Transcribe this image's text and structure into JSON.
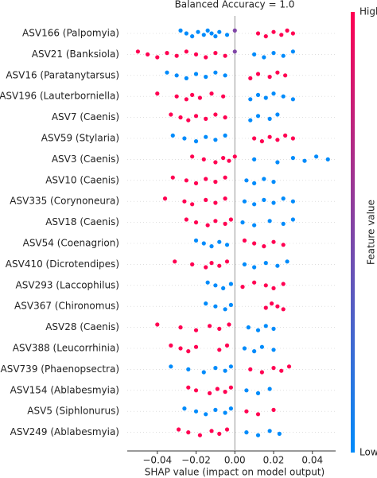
{
  "chart_data": {
    "type": "beeswarm",
    "title": "Balanced Accuracy = 1.0",
    "xlabel": "SHAP value (impact on model output)",
    "xlim": [
      -0.0555,
      0.052
    ],
    "xticks": [
      {
        "value": -0.04,
        "label": "−0.04"
      },
      {
        "value": -0.02,
        "label": "−0.02"
      },
      {
        "value": 0,
        "label": "0.00"
      },
      0.02,
      0.04
    ],
    "colorbar": {
      "label": "Feature value",
      "high": "High",
      "low": "Low",
      "colors": [
        "#008bfb",
        "#ff0052"
      ]
    },
    "series": [
      {
        "name": "ASV166 (Palpomyia)",
        "shap": [
          -0.028,
          -0.025,
          -0.022,
          -0.019,
          -0.016,
          -0.014,
          -0.012,
          -0.01,
          -0.008,
          -0.004,
          0,
          0.012,
          0.016,
          0.02,
          0.024,
          0.027,
          0.03
        ],
        "feature_value": [
          0,
          0,
          0,
          0,
          0,
          0,
          0,
          0,
          0,
          0,
          0.5,
          1,
          1,
          1,
          1,
          1,
          1
        ]
      },
      {
        "name": "ASV21 (Banksiola)",
        "shap": [
          -0.05,
          -0.045,
          -0.04,
          -0.035,
          -0.03,
          -0.025,
          -0.02,
          -0.015,
          -0.01,
          -0.005,
          0,
          0.01,
          0.015,
          0.02,
          0.025,
          0.03
        ],
        "feature_value": [
          1,
          1,
          1,
          1,
          1,
          1,
          1,
          1,
          1,
          1,
          0.5,
          0,
          0,
          0,
          0,
          0
        ]
      },
      {
        "name": "ASV16 (Paratanytarsus)",
        "shap": [
          -0.035,
          -0.03,
          -0.025,
          -0.02,
          -0.015,
          -0.01,
          -0.005,
          0.008,
          0.012,
          0.018,
          0.022,
          0.026
        ],
        "feature_value": [
          0,
          0,
          0,
          0,
          0,
          0,
          0,
          1,
          1,
          1,
          1,
          1
        ]
      },
      {
        "name": "ASV196 (Lauterborniella)",
        "shap": [
          -0.04,
          -0.03,
          -0.025,
          -0.022,
          -0.018,
          -0.012,
          -0.006,
          0.008,
          0.012,
          0.016,
          0.02,
          0.025,
          0.03
        ],
        "feature_value": [
          1,
          1,
          1,
          1,
          1,
          1,
          1,
          0,
          0,
          0,
          0,
          0,
          0
        ]
      },
      {
        "name": "ASV7 (Caenis)",
        "shap": [
          -0.033,
          -0.028,
          -0.024,
          -0.02,
          -0.015,
          -0.01,
          -0.005,
          0.008,
          0.012,
          0.018,
          0.022
        ],
        "feature_value": [
          1,
          1,
          1,
          1,
          1,
          1,
          1,
          0,
          0,
          0,
          0
        ]
      },
      {
        "name": "ASV59 (Stylaria)",
        "shap": [
          -0.032,
          -0.026,
          -0.02,
          -0.015,
          -0.01,
          -0.005,
          0.01,
          0.014,
          0.018,
          0.022,
          0.026,
          0.03
        ],
        "feature_value": [
          0,
          0,
          0,
          0,
          0,
          0,
          1,
          1,
          1,
          1,
          1,
          1
        ]
      },
      {
        "name": "ASV3 (Caenis)",
        "shap": [
          -0.022,
          -0.016,
          -0.01,
          -0.006,
          -0.003,
          0,
          0.01,
          0.022,
          0.03,
          0.036,
          0.042,
          0.048
        ],
        "feature_value": [
          1,
          1,
          1,
          1,
          1,
          1,
          0,
          0,
          0,
          0,
          0,
          0
        ]
      },
      {
        "name": "ASV10 (Caenis)",
        "shap": [
          -0.032,
          -0.025,
          -0.02,
          -0.015,
          -0.01,
          -0.005,
          0.006,
          0.01,
          0.015,
          0.02
        ],
        "feature_value": [
          1,
          1,
          1,
          1,
          1,
          1,
          0,
          0,
          0,
          0
        ]
      },
      {
        "name": "ASV335 (Corynoneura)",
        "shap": [
          -0.036,
          -0.026,
          -0.022,
          -0.015,
          -0.01,
          -0.005,
          0.005,
          0.01,
          0.015,
          0.02,
          0.025,
          0.03
        ],
        "feature_value": [
          1,
          1,
          1,
          1,
          1,
          1,
          0,
          0,
          0,
          0,
          0,
          0
        ]
      },
      {
        "name": "ASV18 (Caenis)",
        "shap": [
          -0.025,
          -0.02,
          -0.014,
          -0.01,
          -0.005,
          -0.002,
          0.004,
          0.01,
          0.018,
          0.025,
          0.03
        ],
        "feature_value": [
          1,
          1,
          1,
          1,
          1,
          1,
          0,
          0,
          0,
          0,
          0
        ]
      },
      {
        "name": "ASV54 (Coenagrion)",
        "shap": [
          -0.02,
          -0.016,
          -0.012,
          -0.008,
          -0.004,
          0.005,
          0.01,
          0.015,
          0.02,
          0.025
        ],
        "feature_value": [
          0,
          0,
          0,
          0,
          0,
          1,
          1,
          1,
          1,
          1
        ]
      },
      {
        "name": "ASV410 (Dicrotendipes)",
        "shap": [
          -0.031,
          -0.022,
          -0.015,
          -0.012,
          -0.008,
          -0.004,
          0.005,
          0.01,
          0.016,
          0.022,
          0.027
        ],
        "feature_value": [
          1,
          1,
          1,
          1,
          1,
          1,
          0,
          0,
          0,
          0,
          0
        ]
      },
      {
        "name": "ASV293 (Laccophilus)",
        "shap": [
          -0.014,
          -0.01,
          -0.006,
          -0.002,
          0.004,
          0.01,
          0.016,
          0.02,
          0.025
        ],
        "feature_value": [
          0,
          0,
          0,
          0,
          1,
          1,
          1,
          1,
          1
        ]
      },
      {
        "name": "ASV367 (Chironomus)",
        "shap": [
          -0.015,
          -0.01,
          -0.005,
          -0.002,
          0.016,
          0.019,
          0.022,
          0.025
        ],
        "feature_value": [
          0,
          0,
          0,
          0,
          1,
          1,
          1,
          1
        ]
      },
      {
        "name": "ASV28 (Caenis)",
        "shap": [
          -0.04,
          -0.028,
          -0.02,
          -0.013,
          -0.008,
          -0.003,
          0.007,
          0.012,
          0.016,
          0.02
        ],
        "feature_value": [
          1,
          1,
          1,
          1,
          1,
          1,
          0,
          0,
          0,
          0
        ]
      },
      {
        "name": "ASV388 (Leucorrhinia)",
        "shap": [
          -0.033,
          -0.028,
          -0.024,
          -0.02,
          -0.008,
          -0.004,
          0.005,
          0.01,
          0.014,
          0.02
        ],
        "feature_value": [
          1,
          1,
          1,
          1,
          1,
          1,
          0,
          0,
          0,
          0
        ]
      },
      {
        "name": "ASV739 (Phaenopsectra)",
        "shap": [
          -0.033,
          -0.024,
          -0.016,
          -0.01,
          -0.005,
          -0.002,
          0.008,
          0.014,
          0.02,
          0.024,
          0.028
        ],
        "feature_value": [
          0,
          0,
          0,
          0,
          0,
          0,
          1,
          1,
          1,
          1,
          1
        ]
      },
      {
        "name": "ASV154 (Ablabesmyia)",
        "shap": [
          -0.024,
          -0.02,
          -0.013,
          -0.009,
          -0.005,
          -0.002,
          0.006,
          0.012,
          0.018
        ],
        "feature_value": [
          1,
          1,
          1,
          1,
          1,
          1,
          0,
          0,
          0
        ]
      },
      {
        "name": "ASV5 (Siphlonurus)",
        "shap": [
          -0.026,
          -0.02,
          -0.015,
          -0.01,
          -0.005,
          -0.002,
          0.006,
          0.012,
          0.02
        ],
        "feature_value": [
          0,
          0,
          0,
          0,
          0,
          0,
          1,
          1,
          1
        ]
      },
      {
        "name": "ASV249 (Ablabesmyia)",
        "shap": [
          -0.029,
          -0.024,
          -0.018,
          -0.012,
          -0.008,
          -0.004,
          0.006,
          0.012,
          0.018,
          0.023
        ],
        "feature_value": [
          1,
          1,
          1,
          1,
          1,
          1,
          0,
          0,
          0,
          0
        ]
      }
    ]
  }
}
